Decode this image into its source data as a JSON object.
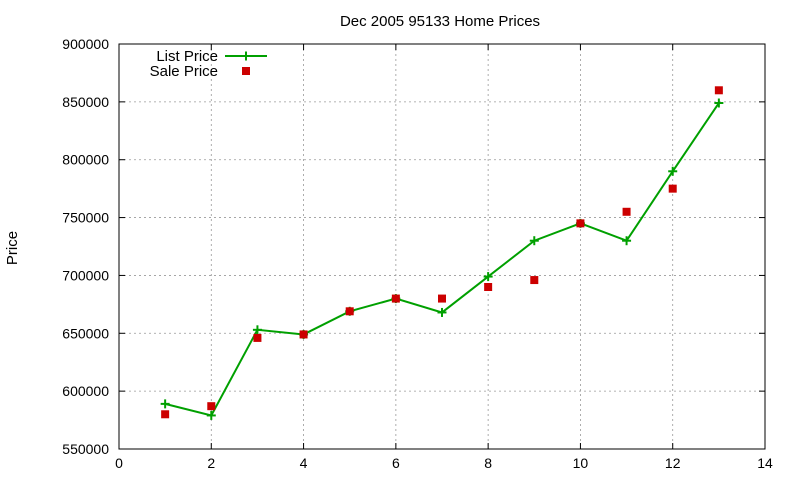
{
  "chart_data": {
    "type": "line",
    "title": "Dec 2005 95133 Home Prices",
    "xlabel": "",
    "ylabel": "Price",
    "xlim": [
      0,
      14
    ],
    "ylim": [
      550000,
      900000
    ],
    "x_ticks": [
      0,
      2,
      4,
      6,
      8,
      10,
      12,
      14
    ],
    "y_ticks": [
      550000,
      600000,
      650000,
      700000,
      750000,
      800000,
      850000,
      900000
    ],
    "grid": true,
    "legend_position": "top-left",
    "series": [
      {
        "name": "List Price",
        "style": "line+plus",
        "color": "#00a000",
        "x": [
          1,
          2,
          3,
          4,
          5,
          6,
          7,
          8,
          9,
          10,
          11,
          12,
          13
        ],
        "values": [
          589000,
          579000,
          653000,
          649000,
          669000,
          680000,
          668000,
          699000,
          730000,
          745000,
          730000,
          790000,
          849000
        ]
      },
      {
        "name": "Sale Price",
        "style": "square-markers",
        "color": "#cc0000",
        "x": [
          1,
          2,
          3,
          4,
          5,
          6,
          7,
          8,
          9,
          10,
          11,
          12,
          13
        ],
        "values": [
          580000,
          587000,
          646000,
          649000,
          669000,
          680000,
          680000,
          690000,
          696000,
          745000,
          755000,
          775000,
          860000
        ]
      }
    ]
  }
}
